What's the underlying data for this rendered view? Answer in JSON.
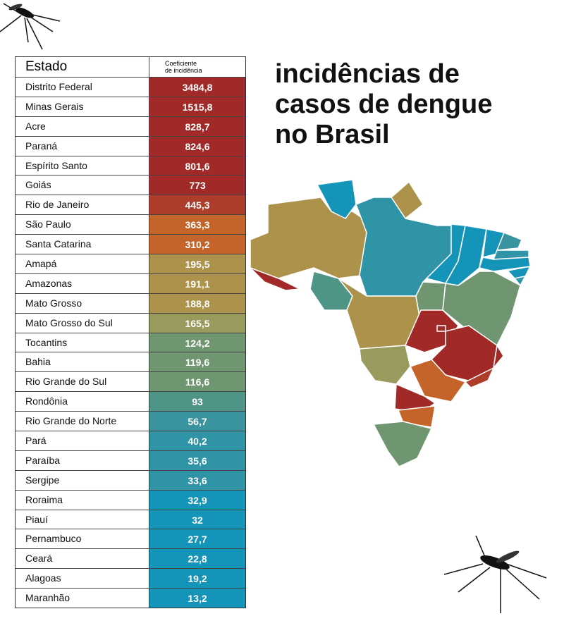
{
  "title": "incidências de casos de dengue no Brasil",
  "chart_data": {
    "type": "table",
    "title": "incidências de casos de dengue no Brasil",
    "columns": [
      "Estado",
      "Coeficiente de incidência"
    ],
    "rows": [
      {
        "estado": "Distrito Federal",
        "valor": "3484,8",
        "color": "#a12a28"
      },
      {
        "estado": "Minas Gerais",
        "valor": "1515,8",
        "color": "#a12a28"
      },
      {
        "estado": "Acre",
        "valor": "828,7",
        "color": "#a12a28"
      },
      {
        "estado": "Paraná",
        "valor": "824,6",
        "color": "#a12a28"
      },
      {
        "estado": "Espírito Santo",
        "valor": "801,6",
        "color": "#a12a28"
      },
      {
        "estado": "Goiás",
        "valor": "773",
        "color": "#a12a28"
      },
      {
        "estado": "Rio de Janeiro",
        "valor": "445,3",
        "color": "#ad3d2a"
      },
      {
        "estado": "São Paulo",
        "valor": "363,3",
        "color": "#c4632a"
      },
      {
        "estado": "Santa Catarina",
        "valor": "310,2",
        "color": "#c4632a"
      },
      {
        "estado": "Amapá",
        "valor": "195,5",
        "color": "#ad924b"
      },
      {
        "estado": "Amazonas",
        "valor": "191,1",
        "color": "#ad924b"
      },
      {
        "estado": "Mato Grosso",
        "valor": "188,8",
        "color": "#ad924b"
      },
      {
        "estado": "Mato Grosso do Sul",
        "valor": "165,5",
        "color": "#999a5d"
      },
      {
        "estado": "Tocantins",
        "valor": "124,2",
        "color": "#6f9670"
      },
      {
        "estado": "Bahia",
        "valor": "119,6",
        "color": "#6f9670"
      },
      {
        "estado": "Rio Grande do Sul",
        "valor": "116,6",
        "color": "#6f9670"
      },
      {
        "estado": "Rondônia",
        "valor": "93",
        "color": "#4e9588"
      },
      {
        "estado": "Rio Grande do Norte",
        "valor": "56,7",
        "color": "#3a94a0"
      },
      {
        "estado": "Pará",
        "valor": "40,2",
        "color": "#2e94a6"
      },
      {
        "estado": "Paraíba",
        "valor": "35,6",
        "color": "#2e94a6"
      },
      {
        "estado": "Sergipe",
        "valor": "33,6",
        "color": "#2e94a6"
      },
      {
        "estado": "Roraima",
        "valor": "32,9",
        "color": "#1494b9"
      },
      {
        "estado": "Piauí",
        "valor": "32",
        "color": "#1494b9"
      },
      {
        "estado": "Pernambuco",
        "valor": "27,7",
        "color": "#1494b9"
      },
      {
        "estado": "Ceará",
        "valor": "22,8",
        "color": "#1494b9"
      },
      {
        "estado": "Alagoas",
        "valor": "19,2",
        "color": "#1494b9"
      },
      {
        "estado": "Maranhão",
        "valor": "13,2",
        "color": "#1494b9"
      }
    ]
  },
  "header": {
    "estado": "Estado",
    "coef_line1": "Coeficiente",
    "coef_line2": "de incidência"
  },
  "title_lines": [
    "incidências de",
    "casos de dengue",
    "no Brasil"
  ]
}
